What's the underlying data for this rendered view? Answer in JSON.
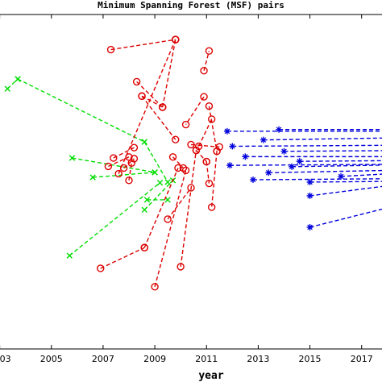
{
  "chart_data": {
    "type": "scatter",
    "title": "Minimum Spanning Forest (MSF) pairs",
    "xlabel": "year",
    "ylabel": "",
    "xlim": [
      2002.7,
      2018.1
    ],
    "ylim": [
      0,
      100
    ],
    "x_ticks": [
      "2003",
      "2005",
      "2007",
      "2009",
      "2011",
      "2013",
      "2015",
      "2017"
    ],
    "grid": false,
    "series": [
      {
        "marker": "x",
        "color": "#00dd00",
        "pairs": [
          [
            [
              2003.3,
              77.8
            ],
            [
              2003.7,
              80.7
            ]
          ],
          [
            [
              2003.7,
              80.7
            ],
            [
              2008.6,
              61.9
            ]
          ],
          [
            [
              2005.8,
              57.1
            ],
            [
              2009.0,
              52.8
            ]
          ],
          [
            [
              2006.6,
              51.3
            ],
            [
              2009.0,
              52.8
            ]
          ],
          [
            [
              2008.6,
              61.9
            ],
            [
              2009.5,
              49.9
            ]
          ],
          [
            [
              2008.7,
              44.6
            ],
            [
              2009.5,
              44.6
            ]
          ],
          [
            [
              2008.6,
              41.6
            ],
            [
              2009.7,
              50.4
            ]
          ],
          [
            [
              2005.7,
              27.9
            ],
            [
              2009.2,
              49.7
            ]
          ]
        ]
      },
      {
        "marker": "o",
        "color": "#dd0000",
        "pairs": [
          [
            [
              2007.3,
              89.5
            ],
            [
              2009.8,
              92.5
            ]
          ],
          [
            [
              2007.6,
              52.4
            ],
            [
              2009.8,
              92.5
            ]
          ],
          [
            [
              2008.3,
              79.9
            ],
            [
              2009.3,
              72.3
            ]
          ],
          [
            [
              2008.5,
              75.6
            ],
            [
              2009.3,
              72.3
            ]
          ],
          [
            [
              2009.3,
              72.3
            ],
            [
              2009.8,
              92.5
            ]
          ],
          [
            [
              2008.5,
              75.6
            ],
            [
              2009.8,
              62.6
            ]
          ],
          [
            [
              2006.9,
              24.1
            ],
            [
              2008.6,
              30.3
            ]
          ],
          [
            [
              2008.6,
              30.3
            ],
            [
              2009.9,
              54.1
            ]
          ],
          [
            [
              2009.0,
              18.6
            ],
            [
              2010.2,
              53.4
            ]
          ],
          [
            [
              2009.7,
              57.4
            ],
            [
              2010.1,
              54.1
            ]
          ],
          [
            [
              2009.5,
              38.8
            ],
            [
              2010.4,
              48.2
            ]
          ],
          [
            [
              2010.0,
              24.6
            ],
            [
              2010.6,
              59.4
            ]
          ],
          [
            [
              2010.6,
              59.4
            ],
            [
              2011.0,
              56.0
            ]
          ],
          [
            [
              2011.0,
              56.0
            ],
            [
              2011.1,
              49.5
            ]
          ],
          [
            [
              2010.9,
              83.2
            ],
            [
              2011.1,
              89.1
            ]
          ],
          [
            [
              2010.7,
              60.6
            ],
            [
              2011.2,
              68.7
            ]
          ],
          [
            [
              2010.9,
              75.4
            ],
            [
              2010.2,
              67.1
            ]
          ],
          [
            [
              2010.4,
              61.1
            ],
            [
              2011.5,
              60.4
            ]
          ],
          [
            [
              2011.1,
              72.6
            ],
            [
              2011.4,
              59.1
            ]
          ],
          [
            [
              2011.4,
              59.1
            ],
            [
              2011.2,
              42.4
            ]
          ],
          [
            [
              2007.4,
              57.1
            ],
            [
              2008.2,
              60.2
            ]
          ],
          [
            [
              2007.2,
              54.6
            ],
            [
              2008.0,
              57.4
            ]
          ],
          [
            [
              2007.8,
              54.1
            ],
            [
              2008.2,
              56.9
            ]
          ],
          [
            [
              2008.0,
              50.4
            ],
            [
              2008.1,
              55.6
            ]
          ]
        ]
      },
      {
        "marker": "*",
        "color": "#0000dd",
        "pairs": [
          [
            [
              2011.8,
              65.1
            ],
            [
              2018.1,
              65.1
            ]
          ],
          [
            [
              2012.0,
              60.6
            ],
            [
              2018.1,
              60.9
            ]
          ],
          [
            [
              2012.5,
              57.5
            ],
            [
              2018.1,
              57.5
            ]
          ],
          [
            [
              2011.9,
              54.9
            ],
            [
              2018.1,
              55.2
            ]
          ],
          [
            [
              2012.8,
              50.6
            ],
            [
              2018.1,
              50.9
            ]
          ],
          [
            [
              2013.2,
              62.5
            ],
            [
              2018.1,
              63.1
            ]
          ],
          [
            [
              2013.4,
              52.7
            ],
            [
              2018.1,
              53.4
            ]
          ],
          [
            [
              2014.0,
              59.1
            ],
            [
              2018.1,
              59.3
            ]
          ],
          [
            [
              2014.6,
              56.1
            ],
            [
              2018.1,
              56.3
            ]
          ],
          [
            [
              2015.0,
              49.9
            ],
            [
              2018.1,
              50.1
            ]
          ],
          [
            [
              2013.8,
              65.6
            ],
            [
              2018.1,
              65.6
            ]
          ],
          [
            [
              2014.3,
              54.5
            ],
            [
              2018.1,
              55.0
            ]
          ],
          [
            [
              2015.0,
              45.8
            ],
            [
              2018.1,
              48.9
            ]
          ],
          [
            [
              2015.0,
              36.4
            ],
            [
              2018.1,
              42.4
            ]
          ],
          [
            [
              2016.2,
              51.6
            ],
            [
              2018.1,
              52.4
            ]
          ]
        ]
      }
    ]
  }
}
